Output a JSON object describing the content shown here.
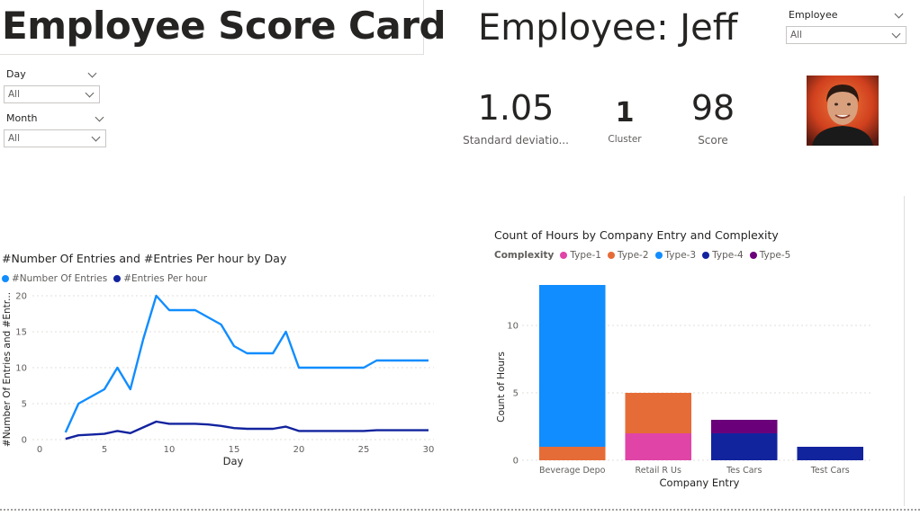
{
  "report": {
    "title": "Employee Score Card",
    "employee_heading": "Employee: Jeff"
  },
  "slicers": {
    "employee": {
      "label": "Employee",
      "value": "All"
    },
    "day": {
      "label": "Day",
      "value": "All"
    },
    "month": {
      "label": "Month",
      "value": "All"
    }
  },
  "cards": {
    "std_dev": {
      "value": "1.05",
      "label": "Standard deviatio..."
    },
    "cluster": {
      "value": "1",
      "label": "Cluster"
    },
    "score": {
      "value": "98",
      "label": "Score"
    }
  },
  "colors": {
    "entries": "#118dff",
    "entries_per_hour": "#12239e",
    "type1": "#e044a7",
    "type2": "#e66c37",
    "type3": "#118dff",
    "type4": "#12239e",
    "type5": "#6b007b"
  },
  "chart_data": [
    {
      "type": "line",
      "title": "#Number Of Entries and #Entries Per hour by Day",
      "xlabel": "Day",
      "ylabel": "#Number Of Entries and #Entr...",
      "xlim": [
        0,
        30
      ],
      "ylim": [
        0,
        20
      ],
      "x_ticks": [
        "0",
        "5",
        "10",
        "15",
        "20",
        "25",
        "30"
      ],
      "y_ticks": [
        "0",
        "5",
        "10",
        "15",
        "20"
      ],
      "legend_position": "top-left",
      "grid": true,
      "x": [
        2,
        3,
        4,
        5,
        6,
        7,
        8,
        9,
        10,
        11,
        12,
        13,
        14,
        15,
        16,
        17,
        18,
        19,
        20,
        21,
        22,
        23,
        24,
        25,
        26,
        27,
        28,
        29,
        30
      ],
      "series": [
        {
          "name": "#Number Of Entries",
          "values": [
            1,
            5,
            6,
            7,
            10,
            7,
            14,
            20,
            18,
            18,
            18,
            17,
            16,
            13,
            12,
            12,
            12,
            15,
            10,
            10,
            10,
            10,
            10,
            10,
            11,
            11,
            11,
            11,
            11
          ]
        },
        {
          "name": "#Entries Per hour",
          "values": [
            0.1,
            0.6,
            0.7,
            0.8,
            1.2,
            0.9,
            1.7,
            2.5,
            2.2,
            2.2,
            2.2,
            2.1,
            1.9,
            1.6,
            1.5,
            1.5,
            1.5,
            1.8,
            1.2,
            1.2,
            1.2,
            1.2,
            1.2,
            1.2,
            1.3,
            1.3,
            1.3,
            1.3,
            1.3
          ]
        }
      ]
    },
    {
      "type": "bar",
      "stacked": true,
      "title": "Count of Hours by Company Entry and Complexity",
      "xlabel": "Company Entry",
      "ylabel": "Count of Hours",
      "legend_title": "Complexity",
      "legend_position": "top-left",
      "ylim": [
        0,
        13
      ],
      "y_ticks": [
        "0",
        "5",
        "10"
      ],
      "categories": [
        "Beverage Depo",
        "Retail R Us",
        "Tes Cars",
        "Test Cars"
      ],
      "series": [
        {
          "name": "Type-1",
          "values": [
            0,
            2,
            0,
            0
          ]
        },
        {
          "name": "Type-2",
          "values": [
            1,
            3,
            0,
            0
          ]
        },
        {
          "name": "Type-3",
          "values": [
            12,
            0,
            0,
            0
          ]
        },
        {
          "name": "Type-4",
          "values": [
            0,
            0,
            2,
            1
          ]
        },
        {
          "name": "Type-5",
          "values": [
            0,
            0,
            1,
            0
          ]
        }
      ]
    }
  ]
}
